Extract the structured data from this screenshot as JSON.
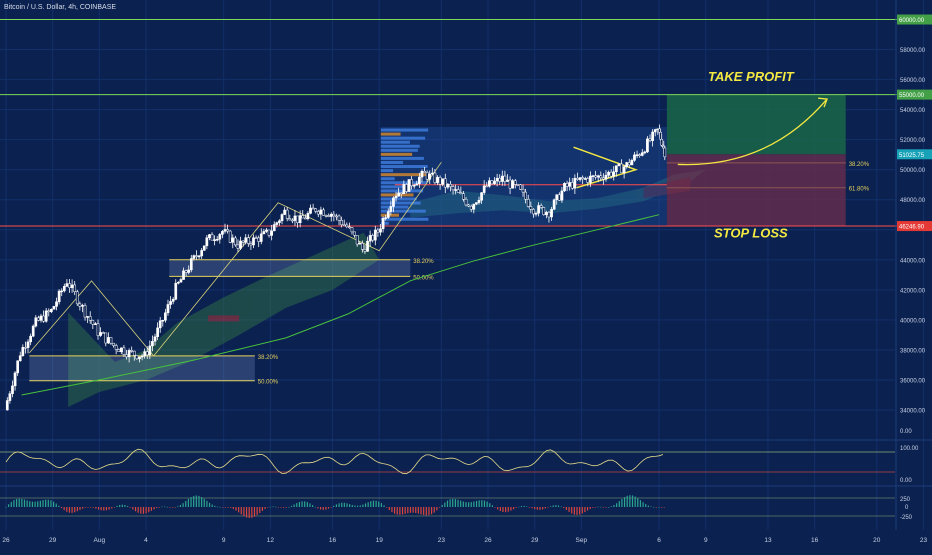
{
  "header": {
    "title": "Bitcoin / U.S. Dollar, 4h, COINBASE"
  },
  "colors": {
    "background": "#0b2150",
    "grid": "#13306a",
    "up": "#ffffff",
    "down": "#0b2150",
    "green_line": "#7ed957",
    "red_line": "#ff4d4d",
    "fib": "#e8d25c",
    "annotation": "#f4e842",
    "price_tag": "#17a2b8",
    "ma": "#48c13e"
  },
  "chart_data": {
    "type": "candlestick",
    "symbol": "BTCUSD",
    "timeframe": "4h",
    "ylim": [
      33200,
      60500
    ],
    "y_ticks": [
      34000,
      36000,
      38000,
      40000,
      42000,
      44000,
      46000,
      48000,
      50000,
      52000,
      54000,
      56000,
      58000,
      60000
    ],
    "y_tick_labels": [
      "34000.00",
      "36000.00",
      "38000.00",
      "40000.00",
      "42000.00",
      "44000.00",
      "46000.00",
      "48000.00",
      "50000.00",
      "52000.00",
      "54000.00",
      "56000.00",
      "58000.00",
      "60000.00"
    ],
    "x_ticks": [
      {
        "label": "26",
        "day": 0
      },
      {
        "label": "29",
        "day": 3
      },
      {
        "label": "Aug",
        "day": 6
      },
      {
        "label": "4",
        "day": 9
      },
      {
        "label": "9",
        "day": 14
      },
      {
        "label": "12",
        "day": 17
      },
      {
        "label": "16",
        "day": 21
      },
      {
        "label": "19",
        "day": 24
      },
      {
        "label": "23",
        "day": 28
      },
      {
        "label": "26",
        "day": 31
      },
      {
        "label": "29",
        "day": 34
      },
      {
        "label": "Sep",
        "day": 37
      },
      {
        "label": "6",
        "day": 42
      },
      {
        "label": "9",
        "day": 45
      },
      {
        "label": "13",
        "day": 49
      },
      {
        "label": "16",
        "day": 52
      },
      {
        "label": "20",
        "day": 56
      },
      {
        "label": "23",
        "day": 59
      }
    ],
    "price_path": [
      [
        0,
        34000
      ],
      [
        1,
        37800
      ],
      [
        2,
        39800
      ],
      [
        3,
        40600
      ],
      [
        4,
        42600
      ],
      [
        5,
        40800
      ],
      [
        6,
        39200
      ],
      [
        7,
        38300
      ],
      [
        8,
        37800
      ],
      [
        9,
        37600
      ],
      [
        10,
        39600
      ],
      [
        11,
        42100
      ],
      [
        12,
        43800
      ],
      [
        13,
        45300
      ],
      [
        14,
        45900
      ],
      [
        15,
        45000
      ],
      [
        16,
        45300
      ],
      [
        17,
        45800
      ],
      [
        18,
        47200
      ],
      [
        19,
        46600
      ],
      [
        20,
        47400
      ],
      [
        21,
        47100
      ],
      [
        22,
        46200
      ],
      [
        23,
        44700
      ],
      [
        24,
        45900
      ],
      [
        25,
        48300
      ],
      [
        26,
        49000
      ],
      [
        27,
        49700
      ],
      [
        28,
        49200
      ],
      [
        29,
        48500
      ],
      [
        30,
        47600
      ],
      [
        31,
        48900
      ],
      [
        32,
        49400
      ],
      [
        33,
        48700
      ],
      [
        34,
        47400
      ],
      [
        35,
        47200
      ],
      [
        36,
        48800
      ],
      [
        37,
        49300
      ],
      [
        38,
        49500
      ],
      [
        39,
        49800
      ],
      [
        40,
        50300
      ],
      [
        41,
        51300
      ],
      [
        42,
        52600
      ],
      [
        42.4,
        51200
      ]
    ],
    "horizontal_lines": [
      {
        "price": 60000,
        "label": "60000.00",
        "color": "#7ed957"
      },
      {
        "price": 55000,
        "label": "55000.00",
        "color": "#7ed957"
      },
      {
        "price": 46246.9,
        "label": "46246.90",
        "color": "#ff4d4d"
      }
    ],
    "last_price": {
      "value": 51025.75,
      "label": "51025.75"
    },
    "take_profit": {
      "label": "TAKE PROFIT",
      "price": 55000
    },
    "stop_loss": {
      "label": "STOP LOSS",
      "price": 46246.9
    },
    "position": {
      "entry": 51025.75,
      "target": 55000,
      "stop": 46246.9,
      "start_day": 42.5,
      "end_day": 54
    },
    "fib_levels": [
      {
        "label": "38.20%",
        "price": 37600,
        "start_day": 1.5,
        "end_day": 16
      },
      {
        "label": "50.00%",
        "price": 35950,
        "start_day": 1.5,
        "end_day": 16
      },
      {
        "label": "38.20%",
        "price": 44000,
        "start_day": 10.5,
        "end_day": 26
      },
      {
        "label": "50.00%",
        "price": 42900,
        "start_day": 10.5,
        "end_day": 26
      },
      {
        "label": "38.20%",
        "price": 50450,
        "start_day": 42.5,
        "end_day": 54
      },
      {
        "label": "61.80%",
        "price": 48800,
        "start_day": 42.5,
        "end_day": 54
      }
    ],
    "red_level_line": {
      "price": 49000,
      "start_day": 25,
      "end_day": 42.5
    },
    "ma_path": [
      [
        1,
        35000
      ],
      [
        6,
        36000
      ],
      [
        12,
        37300
      ],
      [
        18,
        38800
      ],
      [
        22,
        40400
      ],
      [
        26,
        42600
      ],
      [
        30,
        43900
      ],
      [
        34,
        45000
      ],
      [
        38,
        46000
      ],
      [
        42,
        47000
      ]
    ],
    "oscillator_1": {
      "y_tick_labels": [
        "0.00",
        "100.00",
        "0.00"
      ]
    },
    "oscillator_2": {
      "y_tick_labels": [
        "250",
        "0",
        "-250"
      ]
    }
  }
}
